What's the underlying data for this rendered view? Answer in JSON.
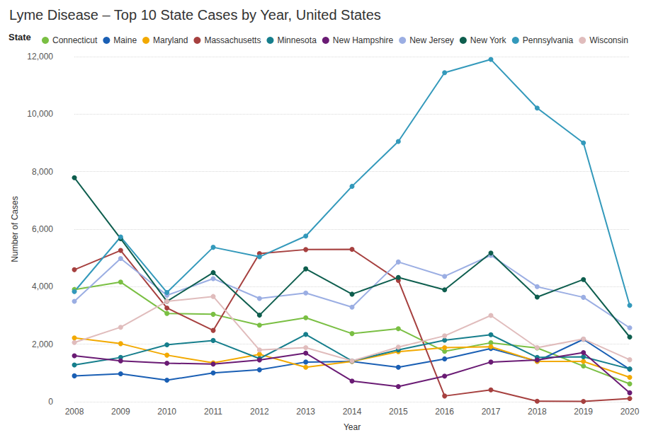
{
  "chart_data": {
    "type": "line",
    "title": "Lyme Disease – Top 10 State Cases by Year, United States",
    "legend_title": "State",
    "x_label": "Year",
    "y_label": "Number of Cases",
    "categories": [
      "2008",
      "2009",
      "2010",
      "2011",
      "2012",
      "2013",
      "2014",
      "2015",
      "2016",
      "2017",
      "2018",
      "2019",
      "2020"
    ],
    "ylim": [
      0,
      12000
    ],
    "yticks": [
      0,
      {
        "value": 2000,
        "label": "2,000"
      },
      {
        "value": 4000,
        "label": "4,000"
      },
      {
        "value": 6000,
        "label": "6,000"
      },
      {
        "value": 8000,
        "label": "8,000"
      },
      {
        "value": 10000,
        "label": "10,000"
      },
      {
        "value": 12000,
        "label": "12,000"
      }
    ],
    "grid": true,
    "legend": "top-left",
    "marker": "circle",
    "series": [
      {
        "name": "Connecticut",
        "color": "#7abf43",
        "values": [
          3900,
          4160,
          3070,
          3040,
          2660,
          2920,
          2370,
          2540,
          1750,
          2050,
          1870,
          1240,
          620
        ]
      },
      {
        "name": "Maine",
        "color": "#1a5fb4",
        "values": [
          900,
          970,
          750,
          1000,
          1110,
          1380,
          1400,
          1200,
          1490,
          1850,
          1410,
          2170,
          1130
        ]
      },
      {
        "name": "Maryland",
        "color": "#f2a900",
        "values": [
          2220,
          2020,
          1620,
          1350,
          1650,
          1200,
          1400,
          1740,
          1880,
          1910,
          1400,
          1400,
          850
        ]
      },
      {
        "name": "Massachusetts",
        "color": "#a6403f",
        "values": [
          4590,
          5260,
          3260,
          2480,
          5150,
          5290,
          5300,
          4220,
          200,
          410,
          20,
          10,
          110
        ]
      },
      {
        "name": "Minnesota",
        "color": "#167e8c",
        "values": [
          1280,
          1540,
          1980,
          2130,
          1500,
          2340,
          1420,
          1800,
          2140,
          2330,
          1540,
          1560,
          1140
        ]
      },
      {
        "name": "New Hampshire",
        "color": "#6a1b74",
        "values": [
          1600,
          1420,
          1340,
          1310,
          1450,
          1690,
          720,
          530,
          890,
          1380,
          1450,
          1710,
          310
        ]
      },
      {
        "name": "New Jersey",
        "color": "#9baee3",
        "values": [
          3490,
          4980,
          3700,
          4280,
          3590,
          3780,
          3290,
          4860,
          4360,
          5090,
          4000,
          3630,
          2570
        ]
      },
      {
        "name": "New York",
        "color": "#0e5e4e",
        "values": [
          7790,
          5670,
          3490,
          4490,
          3010,
          4620,
          3740,
          4320,
          3890,
          5170,
          3640,
          4250,
          2250
        ]
      },
      {
        "name": "Pennsylvania",
        "color": "#3399bb",
        "values": [
          3830,
          5730,
          3800,
          5370,
          5040,
          5760,
          7490,
          9050,
          11440,
          11900,
          10210,
          9000,
          3350
        ]
      },
      {
        "name": "Wisconsin",
        "color": "#e0bcbc",
        "values": [
          2060,
          2590,
          3490,
          3660,
          1800,
          1880,
          1420,
          1900,
          2290,
          3000,
          1880,
          2180,
          1460
        ]
      }
    ]
  }
}
